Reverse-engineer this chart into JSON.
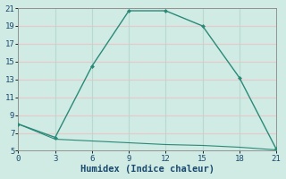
{
  "xlabel": "Humidex (Indice chaleur)",
  "line1_x": [
    0,
    3,
    6,
    9,
    12,
    15,
    18,
    21
  ],
  "line1_y": [
    8.0,
    6.5,
    14.5,
    20.7,
    20.7,
    19.0,
    13.2,
    5.2
  ],
  "line2_x": [
    0,
    3,
    6,
    9,
    12,
    15,
    18,
    21
  ],
  "line2_y": [
    8.0,
    6.3,
    6.1,
    5.9,
    5.7,
    5.6,
    5.4,
    5.1
  ],
  "line_color": "#2a8a78",
  "bg_color": "#d0eae4",
  "grid_h_color": "#e8c8c8",
  "grid_v_color": "#b8d8d0",
  "xlim": [
    0,
    21
  ],
  "ylim": [
    5,
    21
  ],
  "xticks": [
    0,
    3,
    6,
    9,
    12,
    15,
    18,
    21
  ],
  "yticks": [
    5,
    7,
    9,
    11,
    13,
    15,
    17,
    19,
    21
  ],
  "tick_fontsize": 6.5,
  "label_fontsize": 7.5
}
